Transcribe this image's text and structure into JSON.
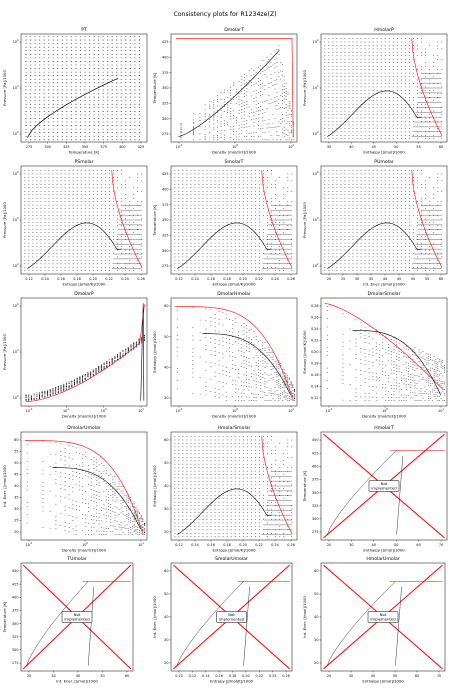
{
  "page_title": "Consistency plots for R1234ze(Z)",
  "not_implemented_label": [
    "Not",
    "implemented"
  ],
  "colors": {
    "envelope": "#000000",
    "iso": "#000000",
    "boundary": "#ff0000",
    "cross": "#ff0000",
    "box": "#000000"
  },
  "chart_data": [
    {
      "type": "scatter",
      "title": "PT",
      "xlabel": "Temperature [K]",
      "ylabel": "Pressure [Pa]/1000",
      "x_ticks": [
        "275",
        "300",
        "325",
        "350",
        "375",
        "400",
        "425"
      ],
      "y_ticks": [
        "10^2",
        "10^3",
        "10^4"
      ],
      "xlim": [
        270,
        445
      ],
      "ylim_log10": [
        1.8,
        4.5
      ],
      "grid": false,
      "implemented": true,
      "series": [
        {
          "kind": "saturation_curve",
          "x": [
            275,
            300,
            325,
            350,
            375,
            400,
            416
          ],
          "y": [
            80,
            190,
            390,
            700,
            1180,
            1850,
            2600
          ]
        }
      ]
    },
    {
      "type": "scatter",
      "title": "DmolarT",
      "xlabel": "Density [mol/m3]/1000",
      "ylabel": "Temperature [K]",
      "x_ticks": [
        "10^-1",
        "10^0",
        "10^1"
      ],
      "y_ticks": [
        "275",
        "300",
        "325",
        "350",
        "375",
        "400",
        "425"
      ],
      "xscale": "log",
      "ylim": [
        265,
        445
      ],
      "grid": false,
      "implemented": true
    },
    {
      "type": "scatter",
      "title": "HmolarP",
      "xlabel": "Enthalpy [J/mol]/1000",
      "ylabel": "Pressure [Pa]/1000",
      "x_ticks": [
        "35",
        "40",
        "45",
        "50",
        "55",
        "60"
      ],
      "y_ticks": [
        "10^2",
        "10^3",
        "10^4"
      ],
      "xlim": [
        30,
        65
      ],
      "yscale": "log",
      "grid": false,
      "implemented": true
    },
    {
      "type": "scatter",
      "title": "PSmolar",
      "xlabel": "Entropy [J/mol/K]/1000",
      "ylabel": "Pressure [Pa]/1000",
      "x_ticks": [
        "0.12",
        "0.14",
        "0.16",
        "0.18",
        "0.20",
        "0.22",
        "0.24",
        "0.26"
      ],
      "y_ticks": [
        "10^2",
        "10^3",
        "10^4"
      ],
      "xlim": [
        0.11,
        0.265
      ],
      "yscale": "log",
      "grid": false,
      "implemented": true
    },
    {
      "type": "scatter",
      "title": "SmolarT",
      "xlabel": "Entropy [J/mol/K]/1000",
      "ylabel": "Temperature [K]",
      "x_ticks": [
        "0.12",
        "0.14",
        "0.16",
        "0.18",
        "0.20",
        "0.22",
        "0.24",
        "0.26"
      ],
      "y_ticks": [
        "275",
        "300",
        "325",
        "350",
        "375",
        "400",
        "425"
      ],
      "xlim": [
        0.11,
        0.265
      ],
      "ylim": [
        265,
        445
      ],
      "grid": false,
      "implemented": true
    },
    {
      "type": "scatter",
      "title": "PUmolar",
      "xlabel": "Int. Ener. [J/mol]/1000",
      "ylabel": "Pressure [Pa]/1000",
      "x_ticks": [
        "20",
        "25",
        "30",
        "35",
        "40",
        "45",
        "50",
        "55",
        "60"
      ],
      "y_ticks": [
        "10^2",
        "10^3",
        "10^4"
      ],
      "xlim": [
        18,
        63
      ],
      "yscale": "log",
      "grid": false,
      "implemented": true
    },
    {
      "type": "scatter",
      "title": "DmolarP",
      "xlabel": "Density [mol/m3]/1000",
      "ylabel": "Pressure [Pa]/1000",
      "x_ticks": [
        "10^-2",
        "10^-1",
        "10^0",
        "10^1"
      ],
      "y_ticks": [
        "10^2",
        "10^3",
        "10^4"
      ],
      "xscale": "log",
      "yscale": "log",
      "grid": false,
      "implemented": true
    },
    {
      "type": "scatter",
      "title": "DmolarHmolar",
      "xlabel": "Density [mol/m3]/1000",
      "ylabel": "Enthalpy [J/mol]/1000",
      "x_ticks": [
        "10^-1",
        "10^0",
        "10^1"
      ],
      "y_ticks": [
        "30",
        "40",
        "50",
        "60"
      ],
      "xscale": "log",
      "grid": false,
      "implemented": true
    },
    {
      "type": "scatter",
      "title": "DmolarSmolar",
      "xlabel": "Density [mol/m3]/1000",
      "ylabel": "Entropy [J/mol/K]/1000",
      "x_ticks": [
        "10^-1",
        "10^0",
        "10^1"
      ],
      "y_ticks": [
        "0.12",
        "0.14",
        "0.16",
        "0.18",
        "0.20",
        "0.22",
        "0.24",
        "0.26",
        "0.28"
      ],
      "xscale": "log",
      "grid": false,
      "implemented": true
    },
    {
      "type": "scatter",
      "title": "DmolarUmolar",
      "xlabel": "Density [mol/m3]/1000",
      "ylabel": "Int. Ener. [J/mol]/1000",
      "x_ticks": [
        "10^-1",
        "10^0",
        "10^1"
      ],
      "y_ticks": [
        "20",
        "25",
        "30",
        "35",
        "40",
        "45",
        "50",
        "55",
        "60"
      ],
      "xscale": "log",
      "grid": false,
      "implemented": true
    },
    {
      "type": "scatter",
      "title": "HmolarSmolar",
      "xlabel": "Entropy [J/mol/K]/1000",
      "ylabel": "Enthalpy [J/mol]/1000",
      "x_ticks": [
        "0.12",
        "0.14",
        "0.16",
        "0.18",
        "0.20",
        "0.22",
        "0.24",
        "0.26"
      ],
      "y_ticks": [
        "20",
        "30",
        "40",
        "50",
        "60"
      ],
      "xlim": [
        0.11,
        0.265
      ],
      "ylim": [
        18,
        65
      ],
      "grid": false,
      "implemented": true
    },
    {
      "type": "scatter",
      "title": "HmolarT",
      "xlabel": "Enthalpy [J/mol]/1000",
      "ylabel": "Temperature [K]",
      "x_ticks": [
        "20",
        "30",
        "40",
        "50",
        "60",
        "70"
      ],
      "y_ticks": [
        "275",
        "300",
        "325",
        "350",
        "375",
        "400",
        "425",
        "450"
      ],
      "xlim": [
        20,
        70
      ],
      "ylim": [
        265,
        455
      ],
      "grid": false,
      "implemented": false
    },
    {
      "type": "scatter",
      "title": "TUmolar",
      "xlabel": "Int. Ener. [J/mol]/1000",
      "ylabel": "Temperature [K]",
      "x_ticks": [
        "20",
        "30",
        "40",
        "50",
        "60"
      ],
      "y_ticks": [
        "275",
        "300",
        "325",
        "350",
        "375",
        "400",
        "425",
        "450"
      ],
      "xlim": [
        20,
        65
      ],
      "ylim": [
        265,
        455
      ],
      "grid": false,
      "implemented": false
    },
    {
      "type": "scatter",
      "title": "SmolarUmolar",
      "xlabel": "Entropy [J/mol/K]/1000",
      "ylabel": "Int. Ener. [J/mol]/1000",
      "x_ticks": [
        "0.10",
        "0.12",
        "0.14",
        "0.16",
        "0.18",
        "0.20",
        "0.22",
        "0.24",
        "0.26"
      ],
      "y_ticks": [
        "20",
        "30",
        "40",
        "50",
        "60"
      ],
      "xlim": [
        0.1,
        0.265
      ],
      "ylim": [
        18,
        65
      ],
      "grid": false,
      "implemented": false
    },
    {
      "type": "scatter",
      "title": "HmolarUmolar",
      "xlabel": "Enthalpy [J/mol]/1000",
      "ylabel": "Int. Ener. [J/mol]/1000",
      "x_ticks": [
        "20",
        "30",
        "40",
        "50",
        "60",
        "70"
      ],
      "y_ticks": [
        "20",
        "30",
        "40",
        "50",
        "60"
      ],
      "xlim": [
        20,
        70
      ],
      "ylim": [
        18,
        65
      ],
      "grid": false,
      "implemented": false
    }
  ]
}
